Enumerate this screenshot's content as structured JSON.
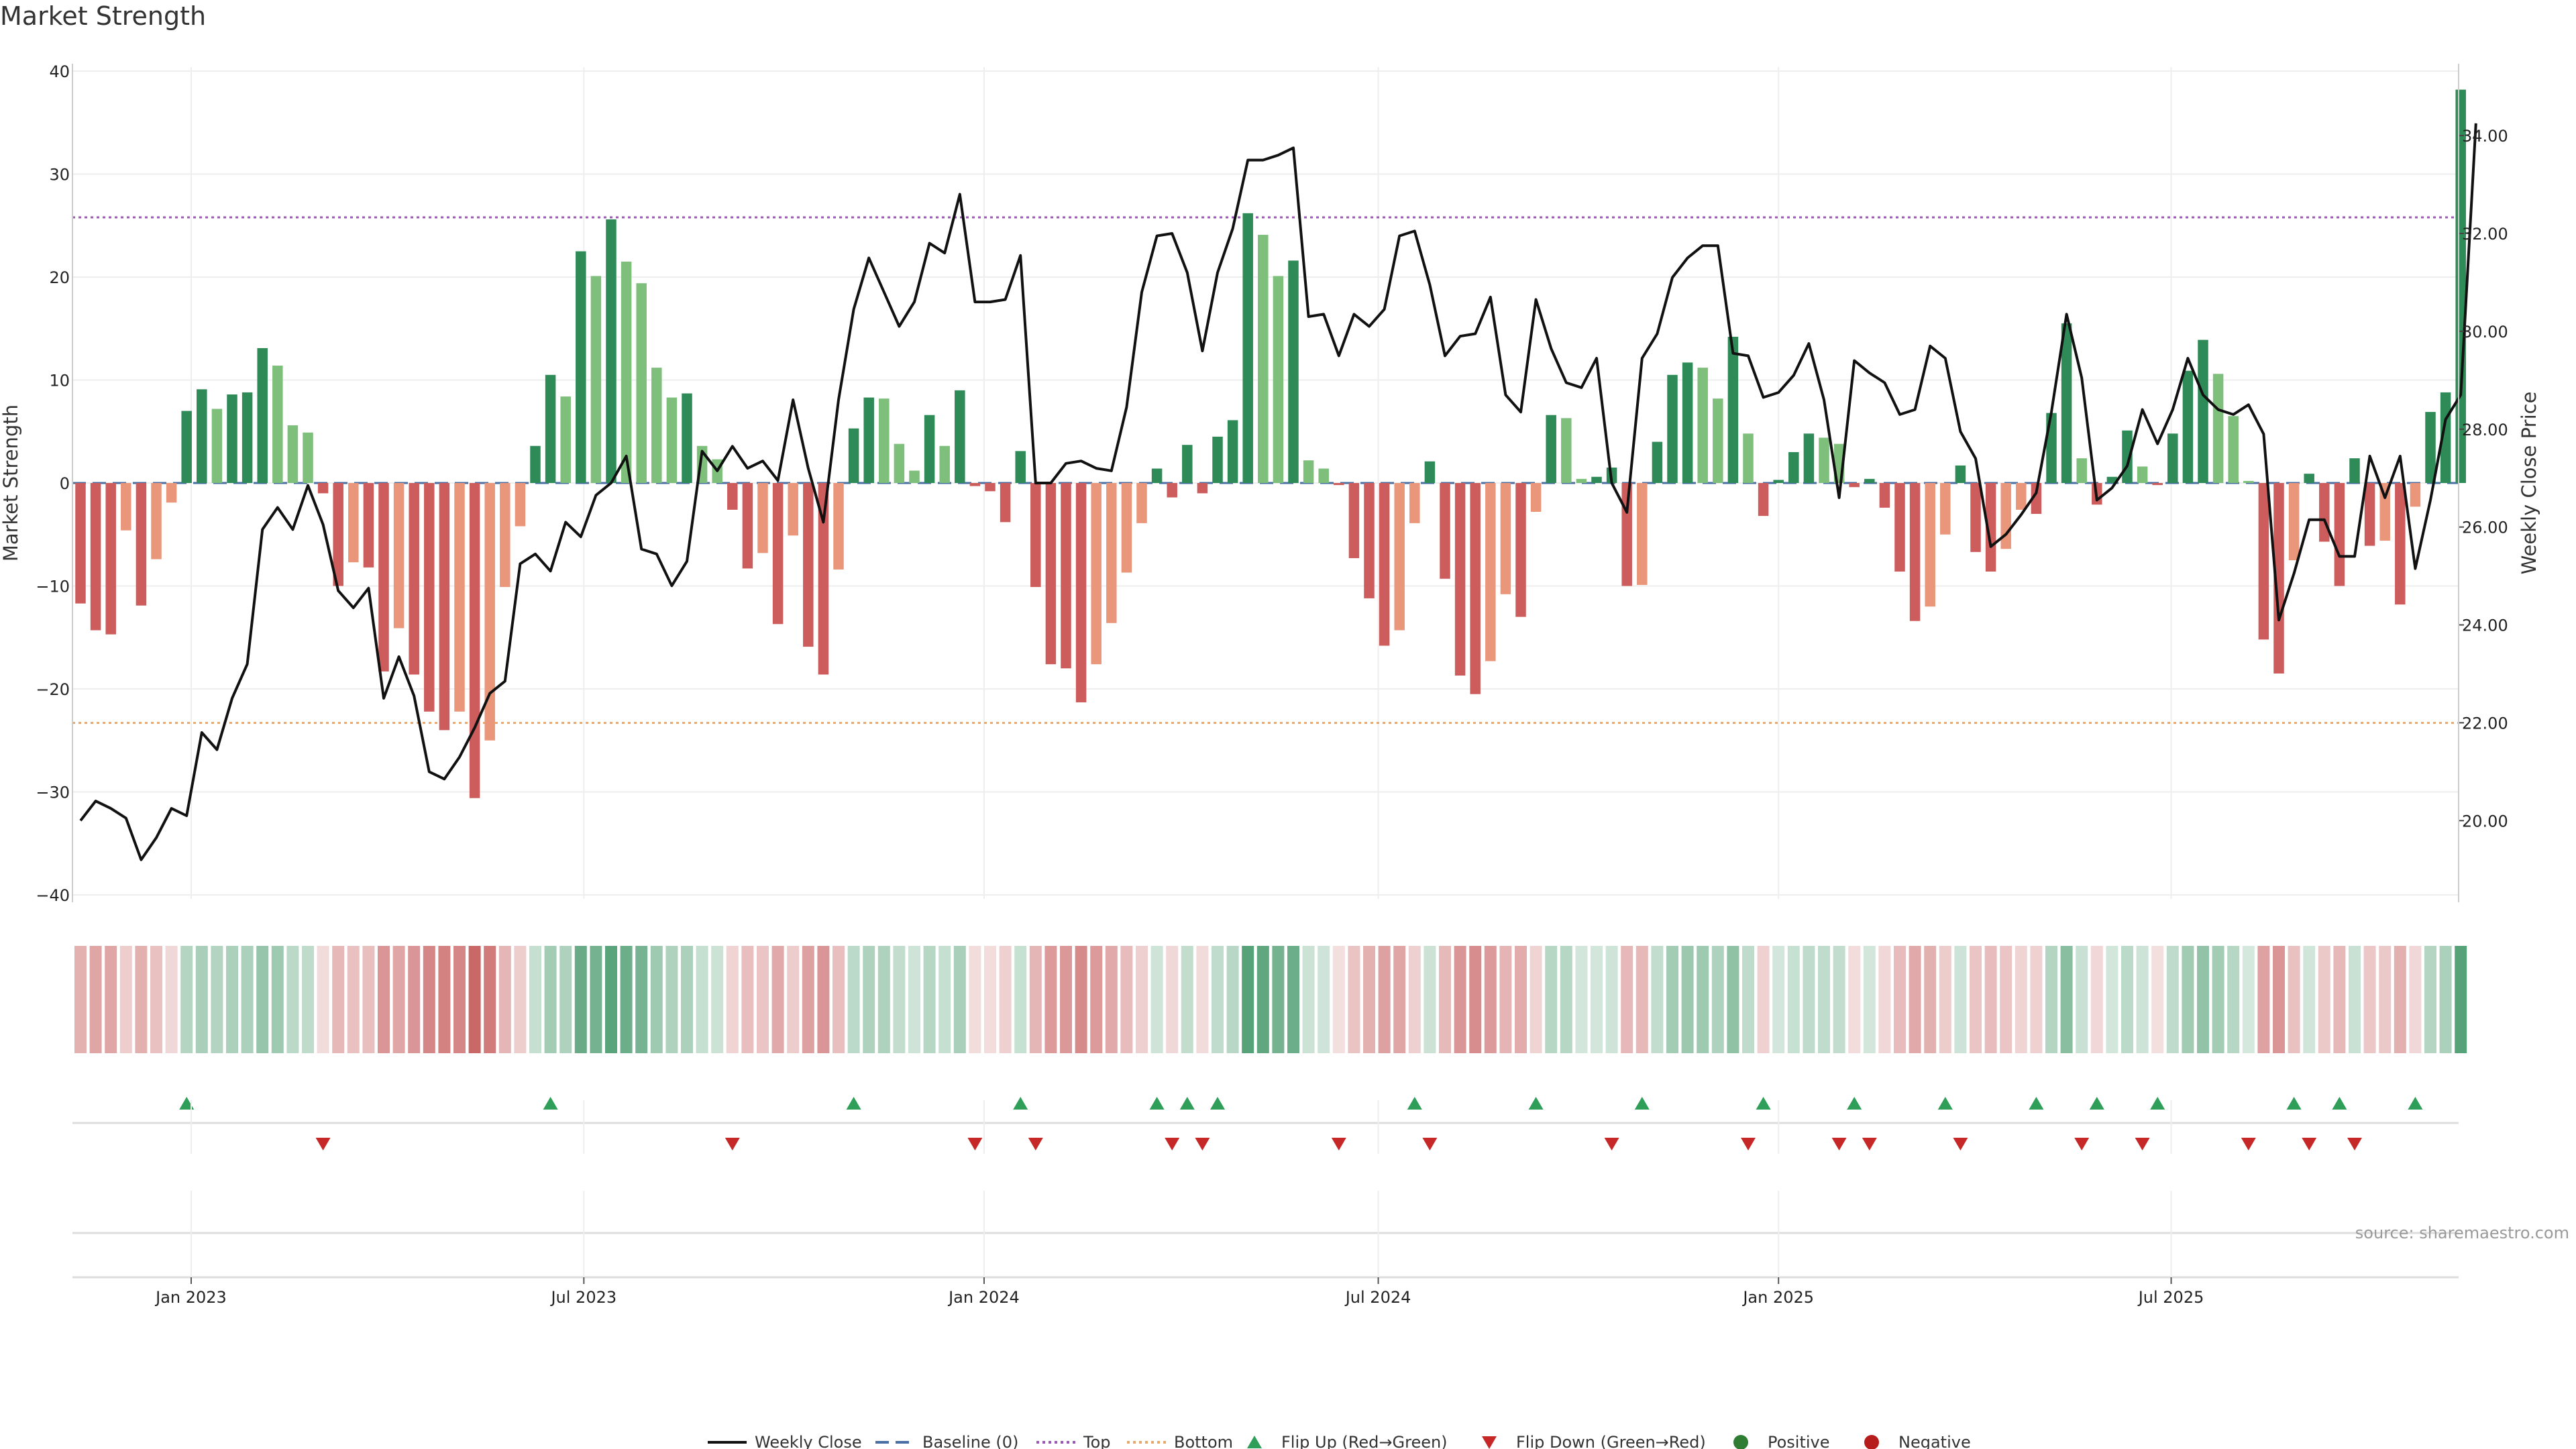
{
  "title": "Market Strength",
  "source": "source: sharemaestro.com",
  "colors": {
    "strong_green": "#2e8b57",
    "light_green": "#7dbf7b",
    "strong_red": "#cd5c5c",
    "light_red": "#e9967a",
    "price_line": "#111111",
    "top_line": "#9b59b6",
    "bottom_line": "#e8a86b",
    "baseline": "#4a6fa5",
    "flip_up": "#2e9e58",
    "flip_down": "#c62828",
    "positive": "#2e7d32",
    "negative": "#b71c1c",
    "grid": "#eeeeee"
  },
  "chart_data": {
    "type": "bar+line",
    "title": "Market Strength",
    "ylabel_left": "Market Strength",
    "ylabel_right": "Weekly Close Price",
    "ylim_left": [
      -40,
      40
    ],
    "ylim_right": [
      18.4,
      35.4
    ],
    "yticks_left": [
      "40",
      "30",
      "20",
      "10",
      "0",
      "−10",
      "−20",
      "−30",
      "−40"
    ],
    "yticks_right": [
      "34.00",
      "32.00",
      "30.00",
      "28.00",
      "26.00",
      "24.00",
      "22.00",
      "20.00"
    ],
    "xticks": [
      {
        "label": "Jan 2023",
        "week": 7.3
      },
      {
        "label": "Jul 2023",
        "week": 33.2
      },
      {
        "label": "Jan 2024",
        "week": 59.6
      },
      {
        "label": "Jul 2024",
        "week": 85.6
      },
      {
        "label": "Jan 2025",
        "week": 112
      },
      {
        "label": "Jul 2025",
        "week": 137.9
      }
    ],
    "top_threshold": 25.8,
    "bottom_threshold": -23.3,
    "strength": [
      -11.7,
      -14.3,
      -14.7,
      -4.6,
      -11.9,
      -7.4,
      -1.9,
      7,
      9.1,
      7.2,
      8.6,
      8.8,
      13.1,
      11.4,
      5.6,
      4.9,
      -1,
      -10,
      -7.7,
      -8.2,
      -18.3,
      -14.1,
      -18.6,
      -22.2,
      -24,
      -22.2,
      -30.6,
      -25,
      -10.1,
      -4.2,
      3.6,
      10.5,
      8.4,
      22.5,
      20.1,
      25.6,
      21.5,
      19.4,
      11.2,
      8.3,
      8.7,
      3.6,
      2.3,
      -2.6,
      -8.3,
      -6.8,
      -13.7,
      -5.1,
      -15.9,
      -18.6,
      -8.4,
      5.3,
      8.3,
      8.2,
      3.8,
      1.2,
      6.6,
      3.6,
      9,
      -0.3,
      -0.8,
      -3.8,
      3.1,
      -10.1,
      -17.6,
      -18,
      -21.3,
      -17.6,
      -13.6,
      -8.7,
      -3.9,
      1.4,
      -1.4,
      3.7,
      -1,
      4.5,
      6.1,
      26.2,
      24.1,
      20.1,
      21.6,
      2.2,
      1.4,
      -0.2,
      -7.3,
      -11.2,
      -15.8,
      -14.3,
      -3.9,
      2.1,
      -9.3,
      -18.7,
      -20.5,
      -17.3,
      -10.8,
      -13,
      -2.8,
      6.6,
      6.3,
      0.4,
      0.6,
      1.5,
      -10,
      -9.9,
      4,
      10.5,
      11.7,
      11.2,
      8.2,
      14.2,
      4.8,
      -3.2,
      0.3,
      3,
      4.8,
      4.4,
      3.8,
      -0.4,
      0.4,
      -2.4,
      -8.6,
      -13.4,
      -12,
      -5,
      1.7,
      -6.7,
      -8.6,
      -6.4,
      -2.6,
      -3,
      6.8,
      15.5,
      2.4,
      -2.1,
      0.6,
      5.1,
      1.6,
      -0.2,
      4.8,
      10.9,
      13.9,
      10.6,
      6.5,
      0.2,
      -15.2,
      -18.5,
      -7.5,
      0.9,
      -5.7,
      -10,
      2.4,
      -6.1,
      -5.6,
      -11.8,
      -2.3,
      6.9,
      8.8,
      38.2
    ],
    "weekly_close": [
      20,
      20.4,
      20.25,
      20.05,
      19.2,
      19.65,
      20.25,
      20.1,
      21.8,
      21.45,
      22.5,
      23.2,
      25.95,
      26.4,
      25.95,
      26.85,
      26.05,
      24.7,
      24.35,
      24.75,
      22.5,
      23.35,
      22.55,
      21,
      20.85,
      21.3,
      21.9,
      22.6,
      22.85,
      25.25,
      25.45,
      25.1,
      26.1,
      25.8,
      26.65,
      26.9,
      27.45,
      25.55,
      25.45,
      24.8,
      25.3,
      27.55,
      27.15,
      27.65,
      27.2,
      27.35,
      26.95,
      28.6,
      27.2,
      26.1,
      28.6,
      30.45,
      31.5,
      30.8,
      30.1,
      30.6,
      31.8,
      31.6,
      32.8,
      30.6,
      30.6,
      30.65,
      31.55,
      26.9,
      26.9,
      27.3,
      27.35,
      27.2,
      27.15,
      28.45,
      30.8,
      31.95,
      32,
      31.2,
      29.6,
      31.2,
      32.1,
      33.5,
      33.5,
      33.6,
      33.75,
      30.3,
      30.35,
      29.5,
      30.35,
      30.1,
      30.45,
      31.95,
      32.05,
      30.95,
      29.5,
      29.9,
      29.95,
      30.7,
      28.7,
      28.35,
      30.65,
      29.65,
      28.95,
      28.85,
      29.45,
      26.9,
      26.3,
      29.45,
      29.95,
      31.1,
      31.5,
      31.75,
      31.75,
      29.55,
      29.5,
      28.65,
      28.75,
      29.1,
      29.75,
      28.6,
      26.6,
      29.4,
      29.15,
      28.95,
      28.3,
      28.4,
      29.7,
      29.45,
      27.95,
      27.4,
      25.6,
      25.85,
      26.25,
      26.7,
      28.35,
      30.35,
      29.05,
      26.55,
      26.8,
      27.25,
      28.4,
      27.7,
      28.4,
      29.45,
      28.7,
      28.4,
      28.3,
      28.5,
      27.9,
      24.1,
      25.05,
      26.15,
      26.15,
      25.4,
      25.4,
      27.45,
      26.6,
      27.45,
      25.15,
      26.55,
      28.2,
      28.7,
      34.25
    ],
    "flip_up_weeks": [
      7,
      31,
      51,
      62,
      71,
      73,
      75,
      88,
      96,
      103,
      111,
      117,
      123,
      129,
      133,
      137,
      146,
      149,
      154
    ],
    "flip_down_weeks": [
      16,
      43,
      59,
      63,
      72,
      74,
      83,
      89,
      101,
      110,
      116,
      118,
      124,
      132,
      136,
      143,
      147,
      150
    ],
    "legend": [
      "Weekly Close",
      "Baseline (0)",
      "Top",
      "Bottom",
      "Flip Up (Red→Green)",
      "Flip Down (Green→Red)",
      "Positive",
      "Negative"
    ]
  }
}
